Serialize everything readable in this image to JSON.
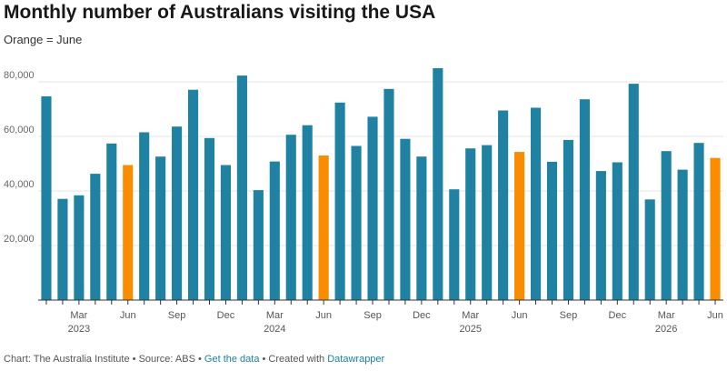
{
  "page": {
    "title": "Monthly number of Australians visiting the USA",
    "subtitle": "Orange = June"
  },
  "footer": {
    "chart_credit": "Chart: The Australia Institute",
    "sep1": " • ",
    "source": "Source: ABS",
    "sep2": " • ",
    "get_data": "Get the data",
    "sep3": " • ",
    "created_with": "Created with ",
    "datawrapper": "Datawrapper"
  },
  "colors": {
    "default_bar": "#1f82a3",
    "june_bar": "#fa8c00",
    "grid": "#e6e6e6",
    "axis": "#333333"
  },
  "chart_data": {
    "type": "bar",
    "title": "Monthly number of Australians visiting the USA",
    "subtitle": "Orange = June",
    "ylim": [
      0,
      90000
    ],
    "y_ticks": [
      20000,
      40000,
      60000,
      80000
    ],
    "y_tick_labels": [
      "20,000",
      "40,000",
      "60,000",
      "80,000"
    ],
    "grid": true,
    "categories": [
      "2023-01",
      "2023-02",
      "2023-03",
      "2023-04",
      "2023-05",
      "2023-06",
      "2023-07",
      "2023-08",
      "2023-09",
      "2023-10",
      "2023-11",
      "2023-12",
      "2024-01",
      "2024-02",
      "2024-03",
      "2024-04",
      "2024-05",
      "2024-06",
      "2024-07",
      "2024-08",
      "2024-09",
      "2024-10",
      "2024-11",
      "2024-12",
      "2025-01",
      "2025-02",
      "2025-03",
      "2025-04",
      "2025-05",
      "2025-06",
      "2025-07",
      "2025-08",
      "2025-09",
      "2025-10",
      "2025-11",
      "2025-12",
      "2026-01",
      "2026-02",
      "2026-03",
      "2026-04",
      "2026-05",
      "2026-06"
    ],
    "values": [
      74700,
      37100,
      38400,
      46300,
      57400,
      49500,
      61500,
      52600,
      63600,
      77100,
      59400,
      49500,
      82300,
      40300,
      50800,
      60600,
      64100,
      53000,
      72400,
      56500,
      67200,
      77400,
      59100,
      52600,
      85000,
      40600,
      55600,
      56800,
      69500,
      54300,
      70500,
      50700,
      58700,
      73600,
      47300,
      50500,
      79300,
      36900,
      54600,
      47800,
      57600,
      52100
    ],
    "highlight": "June",
    "x_tick_labels": [
      {
        "index": 2,
        "month": "Mar",
        "year": "2023"
      },
      {
        "index": 5,
        "month": "Jun",
        "year": ""
      },
      {
        "index": 8,
        "month": "Sep",
        "year": ""
      },
      {
        "index": 11,
        "month": "Dec",
        "year": ""
      },
      {
        "index": 14,
        "month": "Mar",
        "year": "2024"
      },
      {
        "index": 17,
        "month": "Jun",
        "year": ""
      },
      {
        "index": 20,
        "month": "Sep",
        "year": ""
      },
      {
        "index": 23,
        "month": "Dec",
        "year": ""
      },
      {
        "index": 26,
        "month": "Mar",
        "year": "2025"
      },
      {
        "index": 29,
        "month": "Jun",
        "year": ""
      },
      {
        "index": 32,
        "month": "Sep",
        "year": ""
      },
      {
        "index": 35,
        "month": "Dec",
        "year": ""
      },
      {
        "index": 38,
        "month": "Mar",
        "year": "2026"
      },
      {
        "index": 41,
        "month": "Jun",
        "year": ""
      }
    ]
  }
}
